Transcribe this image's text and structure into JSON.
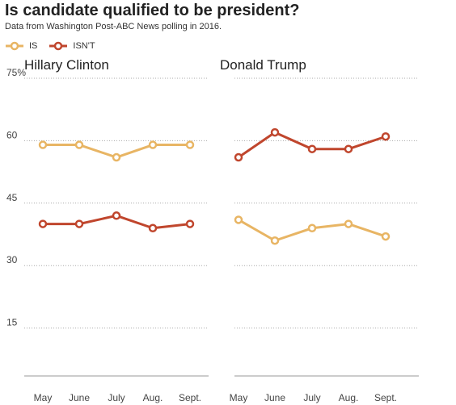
{
  "title": "Is candidate qualified to be president?",
  "subtitle": "Data from Washington Post-ABC News polling in 2016.",
  "colors": {
    "is": "#e8b564",
    "isnt": "#c0462d"
  },
  "legend": [
    {
      "key": "is",
      "label": "IS"
    },
    {
      "key": "isnt",
      "label": "ISN'T"
    }
  ],
  "chart_data": [
    {
      "type": "line",
      "title": "Hillary Clinton",
      "categories": [
        "May",
        "June",
        "July",
        "Aug.",
        "Sept."
      ],
      "ylim": [
        0,
        75
      ],
      "yticks": [
        "75%",
        "60",
        "45",
        "30",
        "15"
      ],
      "grid": true,
      "series": [
        {
          "name": "IS",
          "values": [
            59,
            59,
            56,
            59,
            59
          ]
        },
        {
          "name": "ISN'T",
          "values": [
            40,
            40,
            42,
            39,
            40
          ]
        }
      ]
    },
    {
      "type": "line",
      "title": "Donald Trump",
      "categories": [
        "May",
        "June",
        "July",
        "Aug.",
        "Sept."
      ],
      "ylim": [
        0,
        75
      ],
      "grid": true,
      "series": [
        {
          "name": "IS",
          "values": [
            41,
            36,
            39,
            40,
            37
          ]
        },
        {
          "name": "ISN'T",
          "values": [
            56,
            62,
            58,
            58,
            61
          ]
        }
      ]
    }
  ]
}
